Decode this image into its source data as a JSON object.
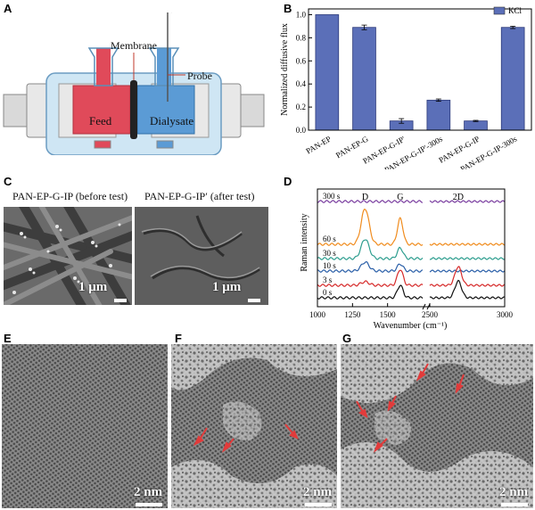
{
  "panels": {
    "A": {
      "label": "A",
      "annotations": {
        "membrane": "Membrane",
        "probe": "Probe",
        "feed": "Feed",
        "dialysate": "Dialysate"
      }
    },
    "B": {
      "label": "B",
      "legend": "KCl"
    },
    "C": {
      "label": "C",
      "left_title": "PAN-EP-G-IP (before test)",
      "right_title": "PAN-EP-G-IP′ (after test)",
      "left_scale": "1 μm",
      "right_scale": "1 μm"
    },
    "D": {
      "label": "D"
    },
    "E": {
      "label": "E",
      "scale": "2 nm"
    },
    "F": {
      "label": "F",
      "scale": "2 nm"
    },
    "G": {
      "label": "G",
      "scale": "2 nm"
    }
  },
  "chart_data": [
    {
      "panel": "B",
      "type": "bar",
      "ylabel": "Normalized diffusive flux",
      "categories": [
        "PAN-EP",
        "PAN-EP-G",
        "PAN-EP-G-IP′",
        "PAN-EP-G-IP′-300s",
        "PAN-EP-G-IP",
        "PAN-EP-G-IP-300s"
      ],
      "values": [
        1.0,
        0.89,
        0.08,
        0.26,
        0.08,
        0.89
      ],
      "errors": [
        0.0,
        0.02,
        0.02,
        0.01,
        0.005,
        0.01
      ],
      "ylim": [
        0,
        1.05
      ],
      "yticks": [
        0.0,
        0.2,
        0.4,
        0.6,
        0.8,
        1.0
      ],
      "ytick_labels": [
        "0.0",
        "0.2",
        "0.4",
        "0.6",
        "0.8",
        "1.0"
      ],
      "series": [
        {
          "name": "KCl",
          "color": "#5b6fb8"
        }
      ],
      "legend": "top-right"
    },
    {
      "panel": "D",
      "type": "line",
      "xlabel": "Wavenumber (cm⁻¹)",
      "ylabel": "Raman intensity",
      "x_break": [
        1750,
        2500
      ],
      "xticks": [
        1000,
        1250,
        1500,
        2500,
        3000
      ],
      "xtick_labels": [
        "1000",
        "1250",
        "1500",
        "2500",
        "3000"
      ],
      "peak_labels": [
        {
          "text": "D",
          "x": 1340
        },
        {
          "text": "G",
          "x": 1590
        },
        {
          "text": "2D",
          "x": 2690
        }
      ],
      "series": [
        {
          "name": "300 s",
          "color": "#7b3fa0",
          "D": 0.0,
          "G": 0.0,
          "D2": 0.0
        },
        {
          "name": "60 s",
          "color": "#f08c1e",
          "D": 1.0,
          "G": 0.72,
          "D2": 0.0
        },
        {
          "name": "30 s",
          "color": "#2e9e8f",
          "D": 0.55,
          "G": 0.3,
          "D2": 0.0
        },
        {
          "name": "10 s",
          "color": "#2a5fa8",
          "D": 0.25,
          "G": 0.2,
          "D2": 0.0
        },
        {
          "name": "3 s",
          "color": "#d62a2a",
          "D": 0.1,
          "G": 0.45,
          "D2": 0.95
        },
        {
          "name": "0 s",
          "color": "#111111",
          "D": 0.0,
          "G": 0.35,
          "D2": 0.85
        }
      ]
    }
  ]
}
